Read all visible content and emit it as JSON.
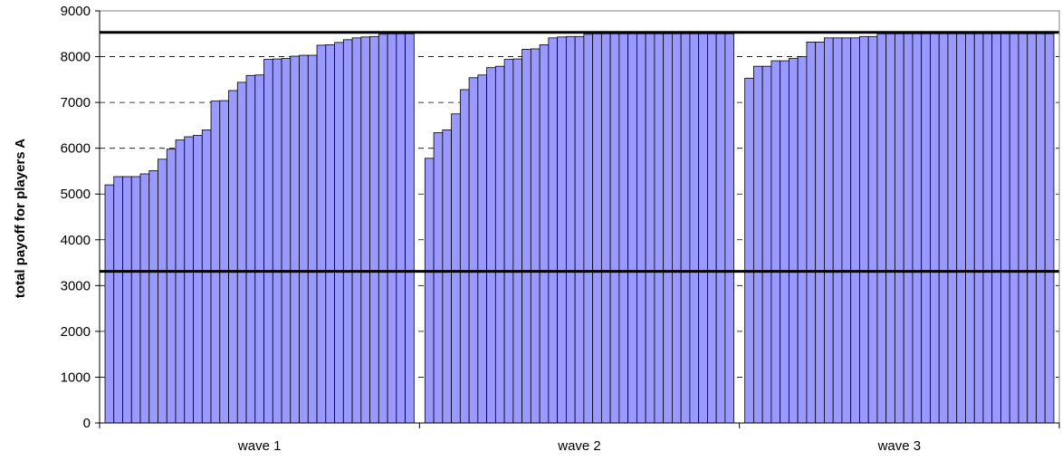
{
  "chart_data": {
    "type": "bar",
    "title": "",
    "xlabel": "",
    "ylabel": "total payoff for players A",
    "ylim": [
      0,
      9000
    ],
    "yticks": [
      0,
      1000,
      2000,
      3000,
      4000,
      5000,
      6000,
      7000,
      8000,
      9000
    ],
    "grid": "dashed horizontal at 7000, 8000",
    "legend": "none",
    "bar_color": "#9999ff",
    "reference_lines": [
      {
        "value": 8530
      },
      {
        "value": 3310
      }
    ],
    "groups": [
      {
        "label": "wave 1",
        "values": [
          5200,
          5380,
          5380,
          5380,
          5440,
          5510,
          5760,
          5980,
          6180,
          6250,
          6280,
          6400,
          7030,
          7040,
          7260,
          7440,
          7590,
          7600,
          7940,
          7950,
          7960,
          8010,
          8030,
          8030,
          8250,
          8260,
          8310,
          8370,
          8410,
          8430,
          8440,
          8490,
          8500,
          8500,
          8500
        ]
      },
      {
        "label": "wave 2",
        "values": [
          5780,
          6340,
          6400,
          6750,
          7280,
          7540,
          7600,
          7760,
          7790,
          7940,
          7950,
          8160,
          8170,
          8260,
          8410,
          8430,
          8440,
          8440,
          8490,
          8500,
          8500,
          8500,
          8500,
          8500,
          8500,
          8500,
          8500,
          8500,
          8500,
          8500,
          8500,
          8500,
          8500,
          8500,
          8500
        ]
      },
      {
        "label": "wave 3",
        "values": [
          7530,
          7790,
          7790,
          7910,
          7910,
          7960,
          8000,
          8320,
          8320,
          8410,
          8410,
          8410,
          8410,
          8440,
          8440,
          8500,
          8500,
          8500,
          8500,
          8500,
          8500,
          8500,
          8500,
          8500,
          8500,
          8500,
          8500,
          8500,
          8500,
          8500,
          8500,
          8500,
          8500,
          8500,
          8500
        ]
      }
    ]
  }
}
